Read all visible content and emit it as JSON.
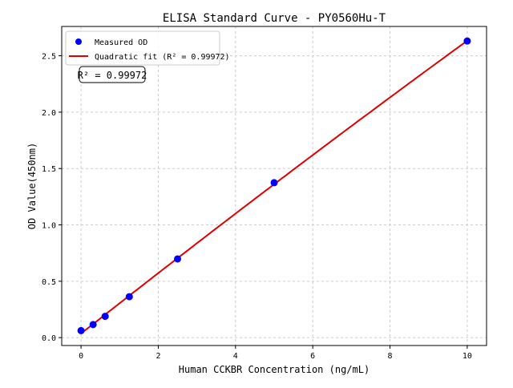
{
  "chart_data": {
    "type": "scatter",
    "title": "ELISA Standard Curve - PY0560Hu-T",
    "xlabel": "Human CCKBR Concentration (ng/mL)",
    "ylabel": "OD Value(450nm)",
    "xlim": [
      -0.5,
      10.5
    ],
    "ylim": [
      -0.07,
      2.76
    ],
    "xticks": [
      0,
      2,
      4,
      6,
      8,
      10
    ],
    "yticks": [
      0.0,
      0.5,
      1.0,
      1.5,
      2.0,
      2.5
    ],
    "xtick_labels": [
      "0",
      "2",
      "4",
      "6",
      "8",
      "10"
    ],
    "ytick_labels": [
      "0.0",
      "0.5",
      "1.0",
      "1.5",
      "2.0",
      "2.5"
    ],
    "grid": true,
    "legend_position": "top-left",
    "series": [
      {
        "name": "Measured OD",
        "kind": "scatter",
        "color": "#0000ff",
        "x": [
          0,
          0.3125,
          0.625,
          1.25,
          2.5,
          5,
          10
        ],
        "y": [
          0.062,
          0.116,
          0.189,
          0.363,
          0.698,
          1.374,
          2.631
        ]
      },
      {
        "name": "Quadratic fit (R² = 0.99972)",
        "kind": "line",
        "color": "#e00000",
        "fit": "quadratic"
      }
    ],
    "annotation": "R² = 0.99972"
  }
}
